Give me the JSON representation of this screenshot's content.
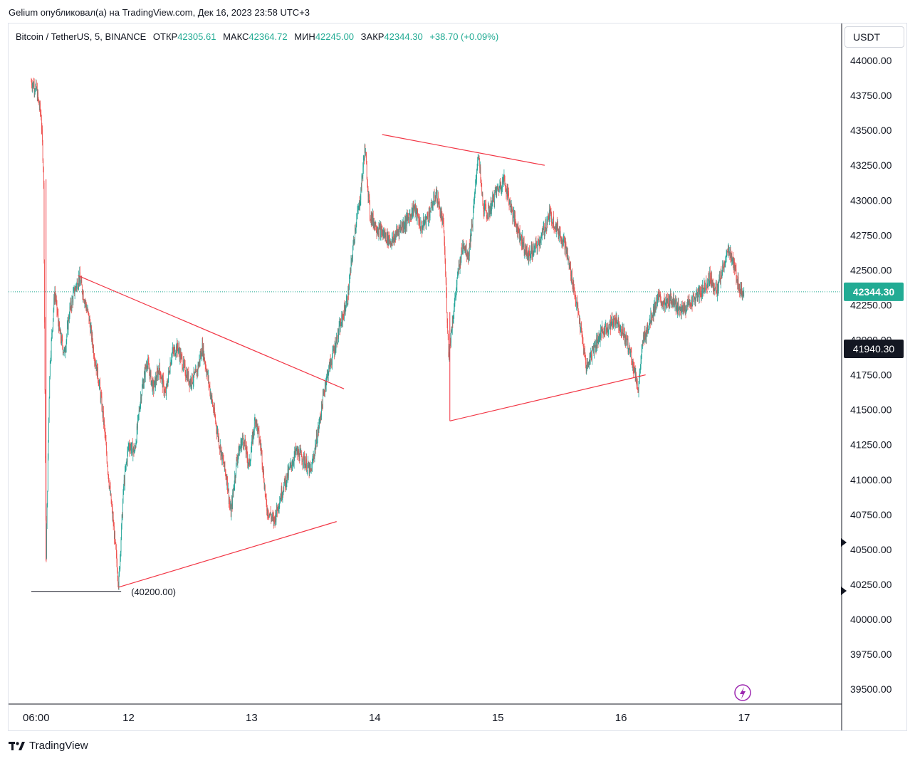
{
  "header": {
    "publish_text": "Gelium опубликовал(а) на TradingView.com, Дек 16, 2023 23:58 UTC+3"
  },
  "legend": {
    "symbol": "Bitcoin / TetherUS, 5, BINANCE",
    "open_label": "ОТКР",
    "open_value": "42305.61",
    "high_label": "МАКС",
    "high_value": "42364.72",
    "low_label": "МИН",
    "low_value": "42245.00",
    "close_label": "ЗАКР",
    "close_value": "42344.30",
    "change": "+38.70 (+0.09%)"
  },
  "currency_label": "USDT",
  "colors": {
    "up": "#26a69a",
    "down": "#ef5350",
    "drawing": "#f23645",
    "last_price_bg": "#22ab94",
    "crosshair_bg": "#131722"
  },
  "footer": {
    "brand": "TradingView"
  },
  "chart_data": {
    "type": "candlestick",
    "title": "Bitcoin / TetherUS, 5, BINANCE",
    "x_tick_labels": [
      "06:00",
      "12",
      "13",
      "14",
      "15",
      "16",
      "17"
    ],
    "y_tick_labels": [
      "44000.00",
      "43750.00",
      "43500.00",
      "43250.00",
      "43000.00",
      "42750.00",
      "42500.00",
      "42250.00",
      "42000.00",
      "41750.00",
      "41500.00",
      "41250.00",
      "41000.00",
      "40750.00",
      "40500.00",
      "40250.00",
      "40000.00",
      "39750.00",
      "39500.00"
    ],
    "ylim": [
      39380,
      44120
    ],
    "last_price": 42344.3,
    "last_price_label": "42344.30",
    "crosshair_price_label": "41940.30",
    "horizontal_level_label": "(40200.00)",
    "price_path_days": [
      [
        11.21,
        43850
      ],
      [
        11.25,
        43800
      ],
      [
        11.29,
        43600
      ],
      [
        11.31,
        43200
      ],
      [
        11.33,
        40400
      ],
      [
        11.36,
        41800
      ],
      [
        11.4,
        42350
      ],
      [
        11.44,
        42050
      ],
      [
        11.48,
        41900
      ],
      [
        11.52,
        42200
      ],
      [
        11.56,
        42350
      ],
      [
        11.6,
        42450
      ],
      [
        11.64,
        42300
      ],
      [
        11.68,
        42150
      ],
      [
        11.72,
        41900
      ],
      [
        11.76,
        41700
      ],
      [
        11.8,
        41400
      ],
      [
        11.84,
        41000
      ],
      [
        11.88,
        40650
      ],
      [
        11.92,
        40250
      ],
      [
        11.96,
        40950
      ],
      [
        12.0,
        41250
      ],
      [
        12.05,
        41200
      ],
      [
        12.1,
        41600
      ],
      [
        12.15,
        41850
      ],
      [
        12.2,
        41650
      ],
      [
        12.25,
        41800
      ],
      [
        12.3,
        41600
      ],
      [
        12.35,
        41900
      ],
      [
        12.4,
        41950
      ],
      [
        12.45,
        41800
      ],
      [
        12.5,
        41700
      ],
      [
        12.55,
        41750
      ],
      [
        12.6,
        41950
      ],
      [
        12.65,
        41700
      ],
      [
        12.7,
        41450
      ],
      [
        12.75,
        41200
      ],
      [
        12.8,
        41000
      ],
      [
        12.83,
        40750
      ],
      [
        12.88,
        41150
      ],
      [
        12.93,
        41300
      ],
      [
        12.98,
        41100
      ],
      [
        13.03,
        41450
      ],
      [
        13.08,
        41200
      ],
      [
        13.12,
        40800
      ],
      [
        13.18,
        40700
      ],
      [
        13.24,
        40900
      ],
      [
        13.3,
        41050
      ],
      [
        13.36,
        41200
      ],
      [
        13.42,
        41150
      ],
      [
        13.48,
        41050
      ],
      [
        13.54,
        41350
      ],
      [
        13.6,
        41700
      ],
      [
        13.66,
        41900
      ],
      [
        13.72,
        42100
      ],
      [
        13.78,
        42300
      ],
      [
        13.84,
        42800
      ],
      [
        13.88,
        43000
      ],
      [
        13.92,
        43380
      ],
      [
        13.96,
        42900
      ],
      [
        14.02,
        42800
      ],
      [
        14.08,
        42750
      ],
      [
        14.14,
        42700
      ],
      [
        14.2,
        42800
      ],
      [
        14.26,
        42850
      ],
      [
        14.32,
        42950
      ],
      [
        14.38,
        42800
      ],
      [
        14.44,
        42900
      ],
      [
        14.5,
        43050
      ],
      [
        14.56,
        42800
      ],
      [
        14.6,
        41900
      ],
      [
        14.64,
        42200
      ],
      [
        14.68,
        42500
      ],
      [
        14.72,
        42700
      ],
      [
        14.76,
        42600
      ],
      [
        14.8,
        42900
      ],
      [
        14.84,
        43350
      ],
      [
        14.88,
        42950
      ],
      [
        14.92,
        42900
      ],
      [
        14.98,
        43050
      ],
      [
        15.05,
        43150
      ],
      [
        15.12,
        42900
      ],
      [
        15.18,
        42750
      ],
      [
        15.24,
        42600
      ],
      [
        15.3,
        42650
      ],
      [
        15.36,
        42750
      ],
      [
        15.42,
        42900
      ],
      [
        15.48,
        42800
      ],
      [
        15.54,
        42700
      ],
      [
        15.6,
        42450
      ],
      [
        15.66,
        42150
      ],
      [
        15.72,
        41800
      ],
      [
        15.78,
        41950
      ],
      [
        15.84,
        42050
      ],
      [
        15.9,
        42100
      ],
      [
        15.96,
        42150
      ],
      [
        16.02,
        42050
      ],
      [
        16.08,
        41900
      ],
      [
        16.14,
        41650
      ],
      [
        16.18,
        42000
      ],
      [
        16.24,
        42150
      ],
      [
        16.3,
        42300
      ],
      [
        16.36,
        42250
      ],
      [
        16.42,
        42300
      ],
      [
        16.48,
        42200
      ],
      [
        16.54,
        42250
      ],
      [
        16.6,
        42300
      ],
      [
        16.66,
        42350
      ],
      [
        16.72,
        42450
      ],
      [
        16.78,
        42350
      ],
      [
        16.84,
        42550
      ],
      [
        16.88,
        42650
      ],
      [
        16.91,
        42550
      ],
      [
        16.94,
        42450
      ],
      [
        16.97,
        42350
      ],
      [
        17.0,
        42344
      ]
    ],
    "trendlines_days": [
      {
        "from": [
          11.59,
          42460
        ],
        "to": [
          13.75,
          41650
        ]
      },
      {
        "from": [
          11.92,
          40230
        ],
        "to": [
          13.69,
          40700
        ]
      },
      {
        "from": [
          14.06,
          43470
        ],
        "to": [
          15.38,
          43250
        ]
      },
      {
        "from": [
          14.61,
          41420
        ],
        "to": [
          16.2,
          41750
        ]
      }
    ],
    "vertical_lines_days": [
      {
        "day": 11.33,
        "from": 40420,
        "to": 43150
      },
      {
        "day": 14.61,
        "from": 41420,
        "to": 42200
      }
    ],
    "horizontal_level": {
      "value": 40200,
      "from_day": 11.21,
      "to_day": 11.94
    }
  }
}
